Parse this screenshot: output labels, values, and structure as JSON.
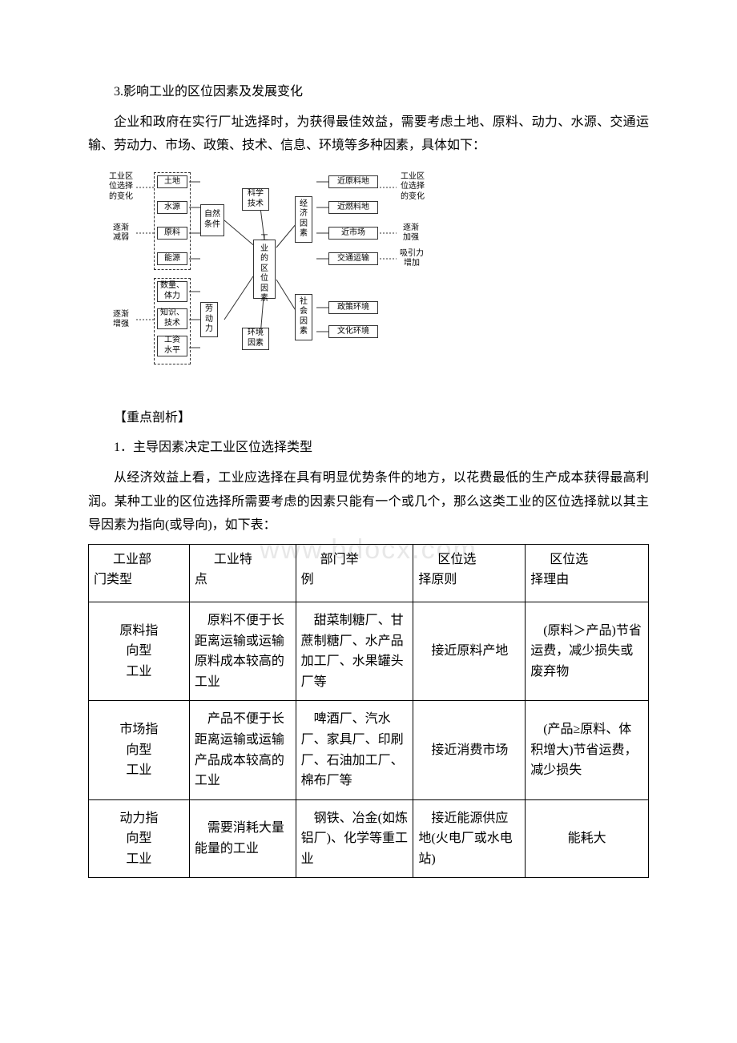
{
  "paragraphs": {
    "p1": "3.影响工业的区位因素及发展变化",
    "p2": "企业和政府在实行厂址选择时，为获得最佳效益，需要考虑土地、原料、动力、水源、交通运输、劳动力、市场、政策、技术、信息、环境等多种因素，具体如下：",
    "p3": "【重点剖析】",
    "p4": "1．主导因素决定工业区位选择类型",
    "p5": "从经济效益上看，工业应选择在具有明显优势条件的地方，以花费最低的生产成本获得最高利润。某种工业的区位选择所需要考虑的因素只能有一个或几个，那么这类工业的区位选择就以其主导因素为指向(或导向)，如下表："
  },
  "watermark": "www.bdocx.com",
  "diagram": {
    "left_title_top": "工业区\n位选择\n的变化",
    "left_mid": "逐渐\n减弱",
    "left_bot": "逐渐\n增强",
    "right_title_top": "工业区\n位选择\n的变化",
    "right_mid": "逐渐\n加强",
    "right_bot": "吸引力\n增加",
    "col_nat_title": "自然\n条件",
    "nat": [
      "土地",
      "水源",
      "原料",
      "能源"
    ],
    "col_lab_title": "劳\n动\n力",
    "lab": [
      "数量、\n体力",
      "知识、\n技术",
      "工资\n水平"
    ],
    "center": "工\n业\n的\n区\n位\n因\n素",
    "sci": "科学\n技术",
    "env": "环境\n因素",
    "econ": "经\n济\n因\n素",
    "society": "社\n会\n因\n素",
    "econ_out": [
      "近原料地",
      "近燃料地",
      "近市场",
      "交通运输"
    ],
    "soc_out": [
      "政策环境",
      "文化环境"
    ]
  },
  "table": {
    "headers": [
      "工业部门类型",
      "工业特点",
      "部门举例",
      "区位选择原则",
      "区位选择理由"
    ],
    "h_line1": [
      "工业部",
      "工业特",
      "部门举",
      "区位选",
      "区位选"
    ],
    "h_line2": [
      "门类型",
      "点",
      "例",
      "择原则",
      "择理由"
    ],
    "rows": [
      {
        "type_l1": "原料指",
        "type_l2": "向型",
        "type_l3": "工业",
        "feature": "原料不便于长距离运输或运输原料成本较高的工业",
        "example": "甜菜制糖厂、甘蔗制糖厂、水产品加工厂、水果罐头厂等",
        "principle": "接近原料产地",
        "reason": "(原料＞产品)节省运费，减少损失或废弃物"
      },
      {
        "type_l1": "市场指",
        "type_l2": "向型",
        "type_l3": "工业",
        "feature": "产品不便于长距离运输或运输产品成本较高的工业",
        "example": "啤酒厂、汽水厂、家具厂、印刷厂、石油加工厂、棉布厂等",
        "principle": "接近消费市场",
        "reason": "(产品≥原料、体积增大)节省运费，减少损失"
      },
      {
        "type_l1": "动力指",
        "type_l2": "向型",
        "type_l3": "工业",
        "feature": "需要消耗大量能量的工业",
        "example": "钢铁、冶金(如炼铝厂)、化学等重工业",
        "principle": "接近能源供应地(火电厂或水电站)",
        "reason": "能耗大"
      }
    ]
  }
}
